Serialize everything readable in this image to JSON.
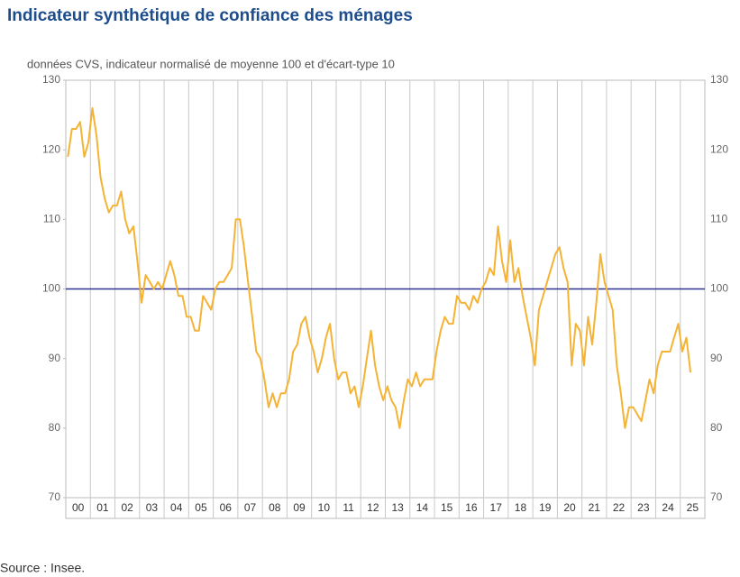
{
  "chart_data": {
    "type": "line",
    "title": "Indicateur synthétique de confiance des ménages",
    "subtitle": "données CVS, indicateur normalisé de moyenne 100 et d'écart-type 10",
    "source": "Source : Insee.",
    "categories": [
      "00",
      "01",
      "02",
      "03",
      "04",
      "05",
      "06",
      "07",
      "08",
      "09",
      "10",
      "11",
      "12",
      "13",
      "14",
      "15",
      "16",
      "17",
      "18",
      "19",
      "20",
      "21",
      "22",
      "23",
      "24",
      "25"
    ],
    "series": [
      {
        "color": "#f5b335",
        "values": [
          [
            119,
            123,
            123,
            124,
            119,
            121
          ],
          [
            126,
            122,
            116,
            113,
            111,
            112
          ],
          [
            112,
            114,
            110,
            108,
            109,
            104
          ],
          [
            98,
            102,
            101,
            100,
            101,
            100
          ],
          [
            102,
            104,
            102,
            99,
            99,
            96
          ],
          [
            96,
            94,
            94,
            99,
            98,
            97
          ],
          [
            100,
            101,
            101,
            102,
            103,
            110
          ],
          [
            110,
            106,
            101,
            96,
            91,
            90
          ],
          [
            87,
            83,
            85,
            83,
            85,
            85
          ],
          [
            87,
            91,
            92,
            95,
            96,
            93
          ],
          [
            91,
            88,
            90,
            93,
            95,
            90
          ],
          [
            87,
            88,
            88,
            85,
            86,
            83
          ],
          [
            86,
            90,
            94,
            89,
            86,
            84
          ],
          [
            86,
            84,
            83,
            80,
            84,
            87
          ],
          [
            86,
            88,
            86,
            87,
            87,
            87
          ],
          [
            91,
            94,
            96,
            95,
            95,
            99
          ],
          [
            98,
            98,
            97,
            99,
            98,
            100
          ],
          [
            101,
            103,
            102,
            109,
            104,
            101
          ],
          [
            107,
            101,
            103,
            99,
            96,
            93
          ],
          [
            89,
            97,
            99,
            101,
            103,
            105
          ],
          [
            106,
            103,
            101,
            89,
            95,
            94
          ],
          [
            89,
            96,
            92,
            98,
            105,
            101
          ],
          [
            99,
            97,
            89,
            85,
            80,
            83
          ],
          [
            83,
            82,
            81,
            84,
            87,
            85
          ],
          [
            89,
            91,
            91,
            91,
            93,
            95
          ],
          [
            91,
            93,
            88
          ]
        ]
      }
    ],
    "reference_line": {
      "value": 100,
      "color": "#2e3192"
    },
    "ylim": [
      70,
      130
    ],
    "yticks": [
      70,
      80,
      90,
      100,
      110,
      120,
      130
    ]
  }
}
